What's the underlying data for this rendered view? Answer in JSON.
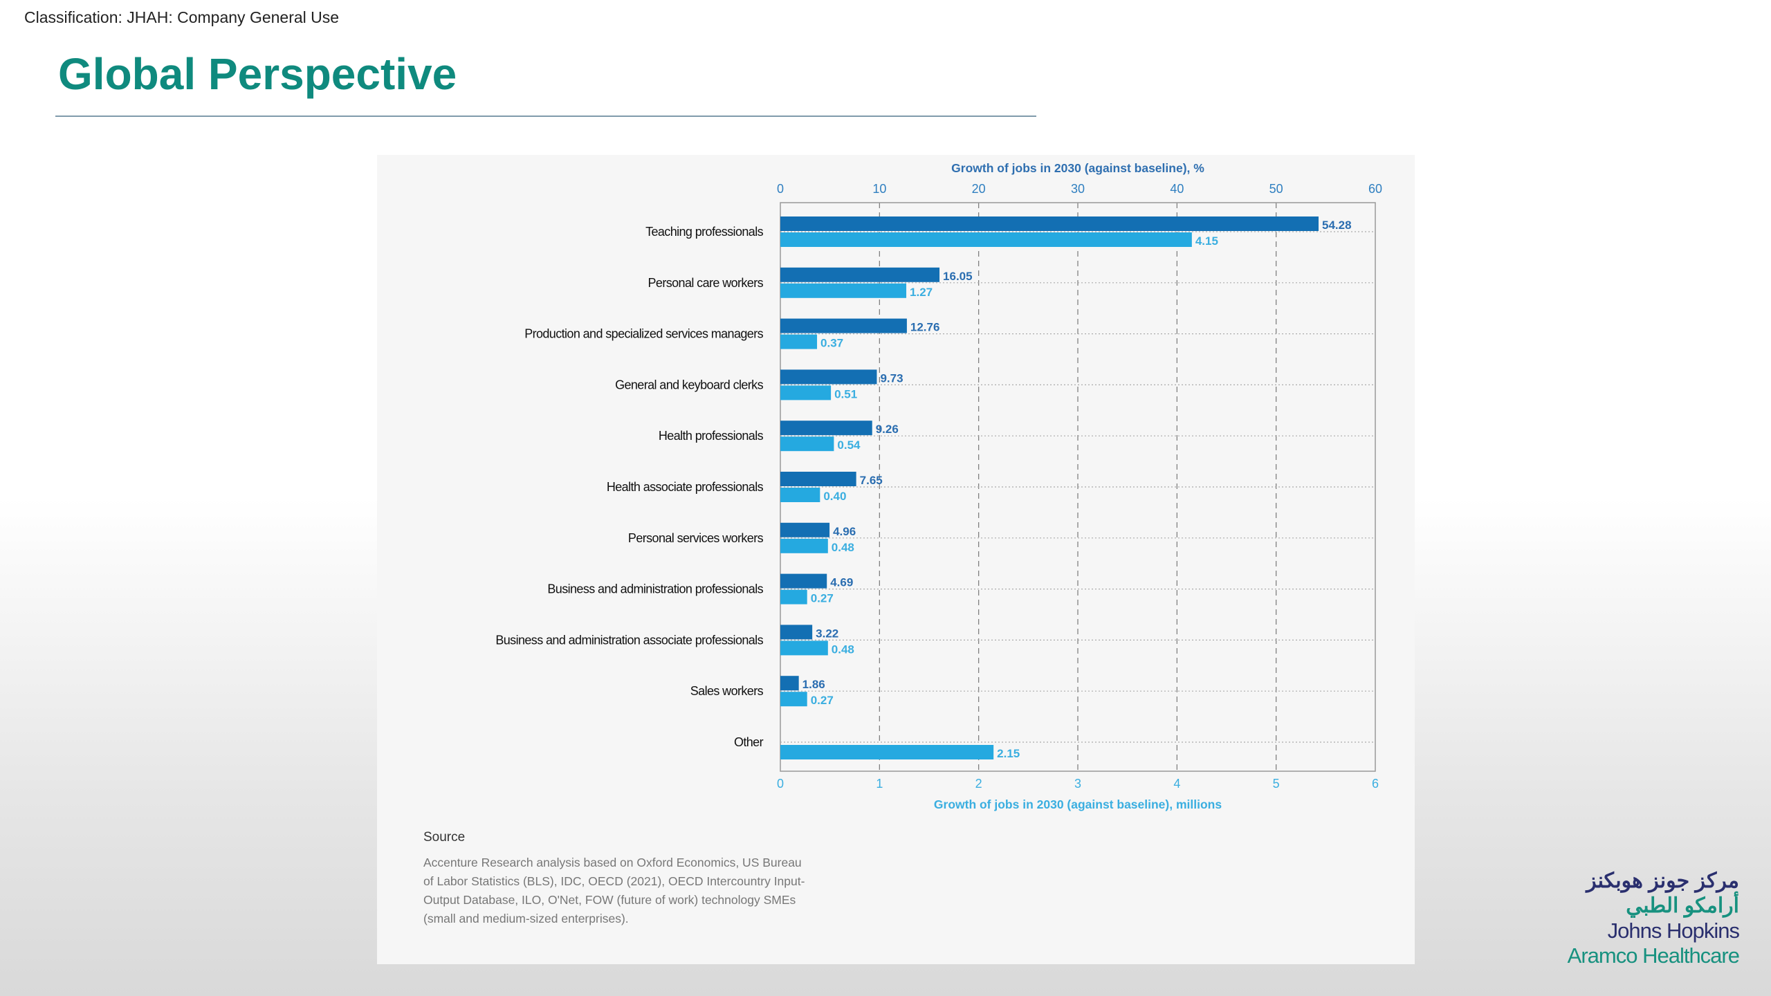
{
  "header": {
    "classification": "Classification: JHAH: Company General Use",
    "title": "Global Perspective"
  },
  "chart_data": {
    "type": "bar",
    "orientation": "horizontal",
    "top_axis": {
      "title": "Growth of jobs in 2030 (against baseline), %",
      "range": [
        0,
        60
      ],
      "ticks": [
        "0",
        "10",
        "20",
        "30",
        "40",
        "50",
        "60"
      ]
    },
    "bottom_axis": {
      "title": "Growth of jobs in 2030 (against baseline), millions",
      "range": [
        0,
        6
      ],
      "ticks": [
        "0",
        "1",
        "2",
        "3",
        "4",
        "5",
        "6"
      ]
    },
    "categories": [
      "Teaching professionals",
      "Personal care workers",
      "Production and specialized services managers",
      "General and keyboard clerks",
      "Health professionals",
      "Health associate professionals",
      "Personal services workers",
      "Business and administration professionals",
      "Business and administration associate professionals",
      "Sales workers",
      "Other"
    ],
    "series": [
      {
        "name": "Growth %",
        "axis": "top",
        "color": "#136fb3",
        "values": [
          54.28,
          16.05,
          12.76,
          9.73,
          9.26,
          7.65,
          4.96,
          4.69,
          3.22,
          1.86,
          null
        ],
        "labels": [
          "54.28",
          "16.05",
          "12.76",
          "9.73",
          "9.26",
          "7.65",
          "4.96",
          "4.69",
          "3.22",
          "1.86",
          ""
        ]
      },
      {
        "name": "Growth millions",
        "axis": "bottom",
        "color": "#25a9e0",
        "values": [
          4.15,
          1.27,
          0.37,
          0.51,
          0.54,
          0.4,
          0.48,
          0.27,
          0.48,
          0.27,
          2.15
        ],
        "labels": [
          "4.15",
          "1.27",
          "0.37",
          "0.51",
          "0.54",
          "0.40",
          "0.48",
          "0.27",
          "0.48",
          "0.27",
          "2.15"
        ]
      }
    ],
    "grid": true
  },
  "source": {
    "heading": "Source",
    "text": "Accenture Research analysis based on Oxford Economics, US Bureau of Labor Statistics (BLS), IDC, OECD (2021), OECD Intercountry Input-Output Database, ILO, O'Net, FOW (future of work) technology SMEs (small and medium-sized enterprises)."
  },
  "logo": {
    "arabic_line1": "مركز جونز هوبكنز",
    "arabic_line2": "أرامكو الطبي",
    "english_line1": "Johns Hopkins",
    "english_line2": "Aramco Healthcare"
  }
}
